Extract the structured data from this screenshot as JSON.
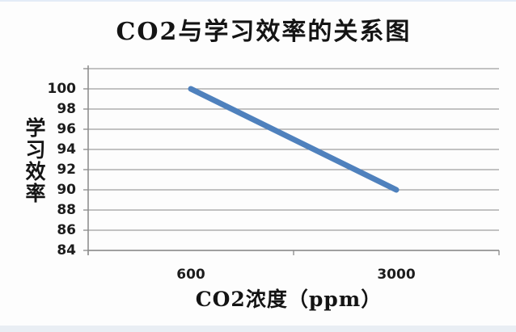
{
  "page": {
    "background_color": "#fdfdfd",
    "top_strip_color": "#e3ecf7",
    "bottom_strip_color": "#e9eef4"
  },
  "chart_data": {
    "type": "line",
    "title": "CO2与学习效率的关系图",
    "xlabel": "CO2浓度（ppm）",
    "ylabel": "学习效率",
    "categories": [
      "600",
      "3000"
    ],
    "x": [
      600,
      3000
    ],
    "series": [
      {
        "name": "学习效率",
        "values": [
          100,
          90
        ],
        "color": "#4f81bd"
      }
    ],
    "yticks": [
      100,
      98,
      96,
      94,
      92,
      90,
      88,
      86,
      84
    ],
    "ylim": [
      84,
      102
    ],
    "y_major_unit": 2,
    "grid": true,
    "legend_position": "none",
    "gridline_color": "#a0a0a0",
    "axis_color": "#8a8a8a",
    "tick_label_color": "#1c1c1c",
    "line_width": 7
  }
}
